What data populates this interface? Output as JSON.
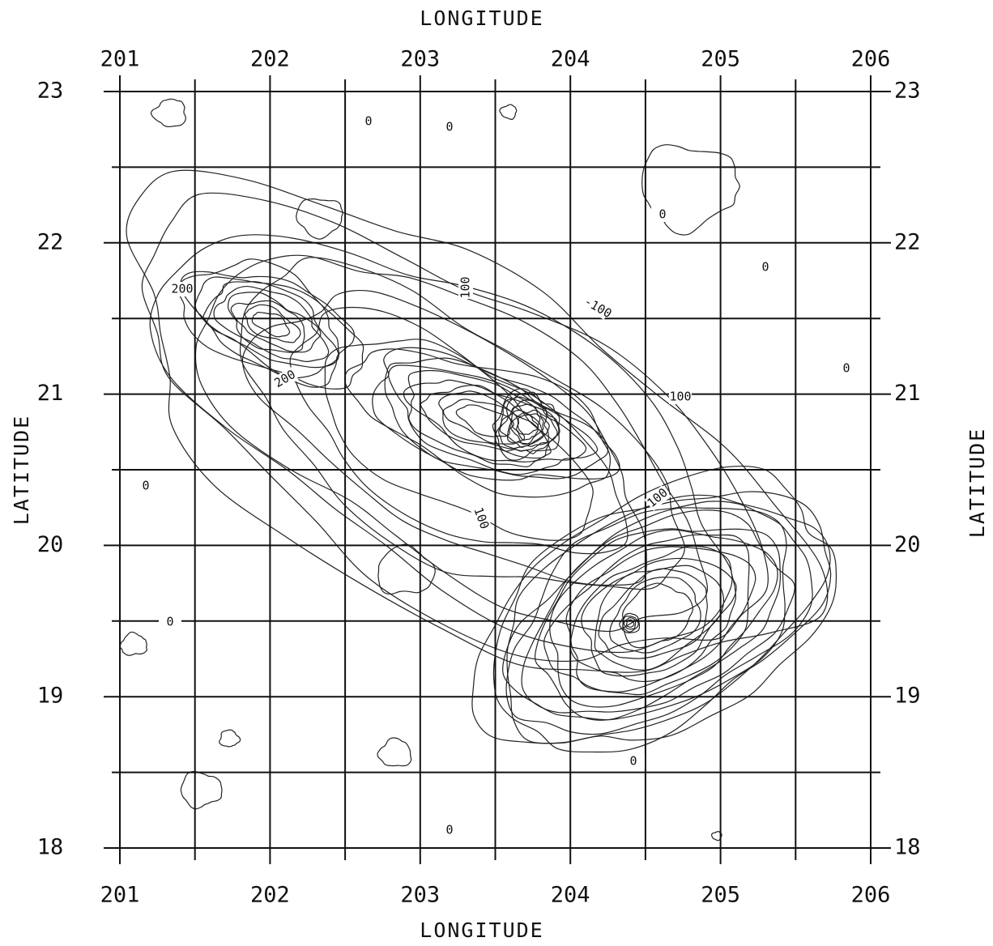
{
  "map": {
    "top_label": "LONGITUDE",
    "bottom_label": "LONGITUDE",
    "left_label": "LATITUDE",
    "right_label": "LATITUDE",
    "xlim": [
      201,
      206
    ],
    "ylim": [
      18,
      23
    ],
    "xticks": [
      201,
      202,
      203,
      204,
      205,
      206
    ],
    "yticks": [
      18,
      19,
      20,
      21,
      22,
      23
    ],
    "contour_labels": [
      "0",
      "0",
      "0",
      "0",
      "0",
      "0",
      "0",
      "0",
      "0",
      "100",
      "100",
      "100",
      "100",
      "-100",
      "200",
      "200"
    ]
  }
}
